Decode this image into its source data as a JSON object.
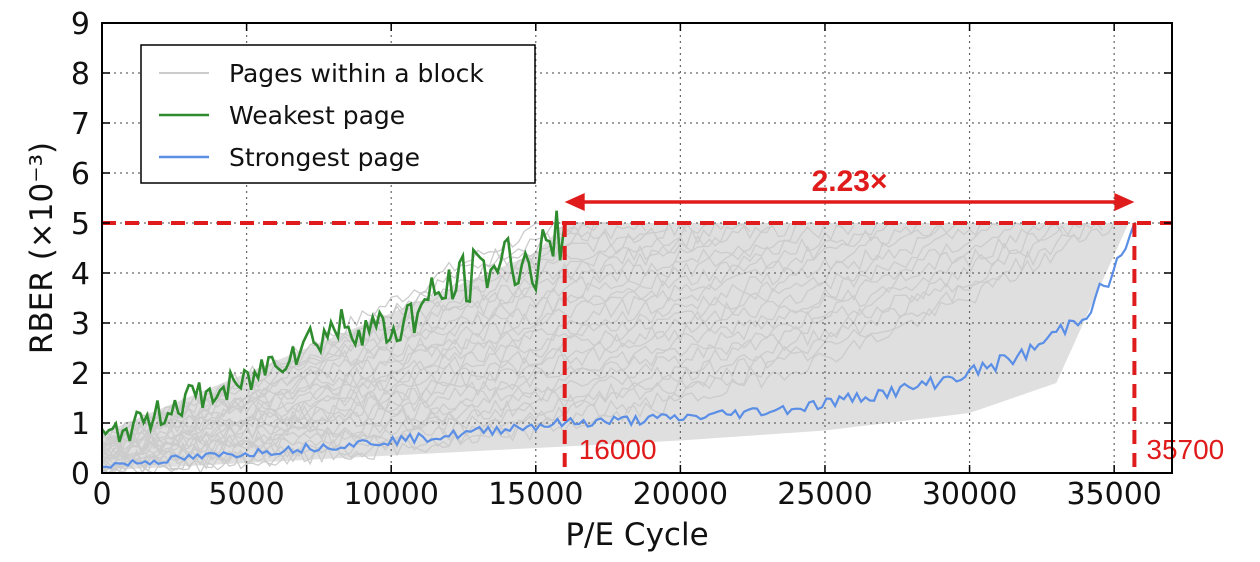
{
  "chart_data": {
    "type": "line",
    "xlabel": "P/E Cycle",
    "ylabel": "RBER (×10⁻³)",
    "xlim": [
      0,
      37000
    ],
    "ylim": [
      0,
      9
    ],
    "x_ticks": [
      "0",
      "5000",
      "10000",
      "15000",
      "20000",
      "25000",
      "30000",
      "35000"
    ],
    "y_ticks": [
      "0",
      "1",
      "2",
      "3",
      "4",
      "5",
      "6",
      "7",
      "8",
      "9"
    ],
    "grid": true,
    "legend": {
      "placement": "top-left",
      "entries": [
        {
          "label": "Pages within a block",
          "color": "#cccccc"
        },
        {
          "label": "Weakest page",
          "color": "#2e8b2e"
        },
        {
          "label": "Strongest page",
          "color": "#5b8fe6"
        }
      ]
    },
    "series": [
      {
        "name": "Weakest page",
        "color": "#2e8b2e",
        "x": [
          0,
          1000,
          2000,
          3000,
          4000,
          5000,
          6000,
          7000,
          8000,
          9000,
          10000,
          11000,
          12000,
          13000,
          14000,
          15000,
          16000
        ],
        "y": [
          0.7,
          0.9,
          1.2,
          1.5,
          1.6,
          1.8,
          2.3,
          2.6,
          2.9,
          3.0,
          2.8,
          3.3,
          3.7,
          4.0,
          4.3,
          4.1,
          5.0
        ]
      },
      {
        "name": "Strongest page",
        "color": "#5b8fe6",
        "x": [
          0,
          2000,
          4000,
          6000,
          8000,
          10000,
          12000,
          14000,
          16000,
          18000,
          20000,
          22000,
          24000,
          26000,
          28000,
          30000,
          32000,
          34000,
          35000,
          35700
        ],
        "y": [
          0.15,
          0.25,
          0.35,
          0.45,
          0.55,
          0.65,
          0.75,
          0.9,
          1.0,
          1.05,
          1.1,
          1.2,
          1.3,
          1.5,
          1.7,
          2.0,
          2.4,
          3.2,
          4.0,
          5.0
        ]
      },
      {
        "name": "Pages within a block",
        "color": "#cccccc",
        "band": true,
        "lower": {
          "x": [
            0,
            5000,
            10000,
            15000,
            20000,
            25000,
            30000,
            33000,
            35500
          ],
          "y": [
            0.05,
            0.2,
            0.35,
            0.5,
            0.65,
            0.85,
            1.2,
            1.8,
            5.0
          ]
        },
        "upper": {
          "x": [
            0,
            5000,
            10000,
            15000,
            16000,
            35500
          ],
          "y": [
            0.8,
            2.0,
            3.2,
            4.4,
            5.0,
            5.0
          ]
        }
      }
    ],
    "annotations": {
      "threshold_y": 5,
      "threshold_color": "#e01b1b",
      "marker_left_x": 16000,
      "marker_right_x": 35700,
      "marker_left_label": "16000",
      "marker_right_label": "35700",
      "ratio_label": "2.23×"
    }
  }
}
